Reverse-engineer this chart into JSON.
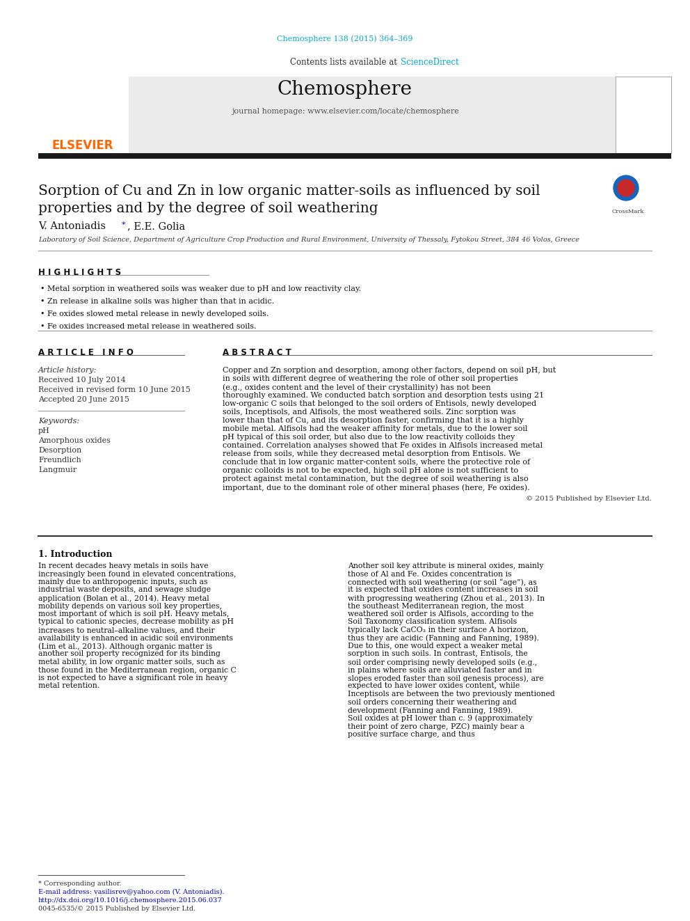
{
  "journal_ref": "Chemosphere 138 (2015) 364–369",
  "journal_ref_color": "#00AACC",
  "header_bg": "#E8E8E8",
  "contents_text": "Contents lists available at ",
  "sciencedirect_text": "ScienceDirect",
  "sciencedirect_color": "#00AACC",
  "journal_name": "Chemosphere",
  "journal_homepage": "journal homepage: www.elsevier.com/locate/chemosphere",
  "elsevier_color": "#FF6600",
  "title": "Sorption of Cu and Zn in low organic matter-soils as influenced by soil\nproperties and by the degree of soil weathering",
  "authors": "V. Antoniadis *, E.E. Golia",
  "affiliation": "Laboratory of Soil Science, Department of Agriculture Crop Production and Rural Environment, University of Thessaly, Fytokou Street, 384 46 Volos, Greece",
  "highlights_title": "H I G H L I G H T S",
  "highlights": [
    "Metal sorption in weathered soils was weaker due to pH and low reactivity clay.",
    "Zn release in alkaline soils was higher than that in acidic.",
    "Fe oxides slowed metal release in newly developed soils.",
    "Fe oxides increased metal release in weathered soils."
  ],
  "article_info_title": "A R T I C L E   I N F O",
  "abstract_title": "A B S T R A C T",
  "article_history_label": "Article history:",
  "received": "Received 10 July 2014",
  "received_revised": "Received in revised form 10 June 2015",
  "accepted": "Accepted 20 June 2015",
  "keywords_label": "Keywords:",
  "keywords": [
    "pH",
    "Amorphous oxides",
    "Desorption",
    "Freundlich",
    "Langmuir"
  ],
  "abstract_text": "Copper and Zn sorption and desorption, among other factors, depend on soil pH, but in soils with different degree of weathering the role of other soil properties (e.g., oxides content and the level of their crystallinity) has not been thoroughly examined. We conducted batch sorption and desorption tests using 21 low-organic C soils that belonged to the soil orders of Entisols, newly developed soils, Inceptisols, and Alfisols, the most weathered soils. Zinc sorption was lower than that of Cu, and its desorption faster, confirming that it is a highly mobile metal. Alfisols had the weaker affinity for metals, due to the lower soil pH typical of this soil order, but also due to the low reactivity colloids they contained. Correlation analyses showed that Fe oxides in Alfisols increased metal release from soils, while they decreased metal desorption from Entisols. We conclude that in low organic matter-content soils, where the protective role of organic colloids is not to be expected, high soil pH alone is not sufficient to protect against metal contamination, but the degree of soil weathering is also important, due to the dominant role of other mineral phases (here, Fe oxides).",
  "copyright": "© 2015 Published by Elsevier Ltd.",
  "intro_title": "1. Introduction",
  "intro_col1": "In recent decades heavy metals in soils have increasingly been found in elevated concentrations, mainly due to anthropogenic inputs, such as industrial waste deposits, and sewage sludge application (Bolan et al., 2014). Heavy metal mobility depends on various soil key properties, most important of which is soil pH. Heavy metals, typical to cationic species, decrease mobility as pH increases to neutral–alkaline values, and their availability is enhanced in acidic soil environments (Lim et al., 2013). Although organic matter is another soil property recognized for its binding metal ability, in low organic matter soils, such as those found in the Mediterranean region, organic C is not expected to have a significant role in heavy metal retention.",
  "intro_col2": "Another soil key attribute is mineral oxides, mainly those of Al and Fe. Oxides concentration is connected with soil weathering (or soil “age”), as it is expected that oxides content increases in soil with progressing weathering (Zhou et al., 2013). In the southeast Mediterranean region, the most weathered soil order is Alfisols, according to the Soil Taxonomy classification system. Alfisols typically lack CaCO₃ in their surface A horizon, thus they are acidic (Fanning and Fanning, 1989). Due to this, one would expect a weaker metal sorption in such soils. In contrast, Entisols, the soil order comprising newly developed soils (e.g., in plains where soils are alluviated faster and in slopes eroded faster than soil genesis process), are expected to have lower oxides content, while Inceptisols are between the two previously mentioned soil orders concerning their weathering and development (Fanning and Fanning, 1989).",
  "intro_col2b": "Soil oxides at pH lower than c. 9 (approximately their point of zero charge, PZC) mainly bear a positive surface charge, and thus",
  "footnotes": [
    "* Corresponding author.",
    "E-mail address: vasilisrev@yahoo.com (V. Antoniadis).",
    "http://dx.doi.org/10.1016/j.chemosphere.2015.06.037",
    "0045-6535/© 2015 Published by Elsevier Ltd."
  ],
  "bg_color": "#FFFFFF",
  "text_color": "#000000",
  "link_color": "#0000CC"
}
